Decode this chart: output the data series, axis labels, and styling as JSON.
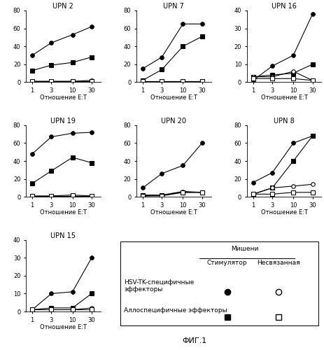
{
  "x": [
    1,
    3,
    10,
    30
  ],
  "subplots": [
    {
      "title": "UPN 2",
      "ylim": [
        0,
        80
      ],
      "yticks": [
        0,
        20,
        40,
        60,
        80
      ],
      "series": [
        {
          "y": [
            30,
            44,
            53,
            62
          ],
          "marker": "o",
          "filled": true
        },
        {
          "y": [
            13,
            19,
            22,
            28
          ],
          "marker": "s",
          "filled": true
        },
        {
          "y": [
            1,
            1,
            1,
            2
          ],
          "marker": "o",
          "filled": false
        },
        {
          "y": [
            1,
            1,
            1,
            1
          ],
          "marker": "s",
          "filled": false
        }
      ]
    },
    {
      "title": "UPN 7",
      "ylim": [
        0,
        80
      ],
      "yticks": [
        0,
        20,
        40,
        60,
        80
      ],
      "series": [
        {
          "y": [
            15,
            28,
            65,
            65
          ],
          "marker": "o",
          "filled": true
        },
        {
          "y": [
            2,
            14,
            40,
            51
          ],
          "marker": "s",
          "filled": true
        },
        {
          "y": [
            1,
            1,
            1,
            1
          ],
          "marker": "o",
          "filled": false
        },
        {
          "y": [
            1,
            1,
            1,
            1
          ],
          "marker": "s",
          "filled": false
        }
      ]
    },
    {
      "title": "UPN 16",
      "ylim": [
        0,
        40
      ],
      "yticks": [
        0,
        10,
        20,
        30,
        40
      ],
      "series": [
        {
          "y": [
            1,
            9,
            15,
            38
          ],
          "marker": "o",
          "filled": true
        },
        {
          "y": [
            3,
            4,
            5,
            10
          ],
          "marker": "s",
          "filled": true
        },
        {
          "y": [
            3,
            3,
            6,
            1
          ],
          "marker": "o",
          "filled": false
        },
        {
          "y": [
            2,
            2,
            2,
            1
          ],
          "marker": "s",
          "filled": false
        }
      ]
    },
    {
      "title": "UPN 19",
      "ylim": [
        0,
        80
      ],
      "yticks": [
        0,
        20,
        40,
        60,
        80
      ],
      "series": [
        {
          "y": [
            48,
            67,
            71,
            72
          ],
          "marker": "o",
          "filled": true
        },
        {
          "y": [
            15,
            29,
            44,
            38
          ],
          "marker": "s",
          "filled": true
        },
        {
          "y": [
            1,
            1,
            1,
            1
          ],
          "marker": "o",
          "filled": false
        },
        {
          "y": [
            1,
            1,
            2,
            1
          ],
          "marker": "s",
          "filled": false
        }
      ]
    },
    {
      "title": "UPN 20",
      "ylim": [
        0,
        80
      ],
      "yticks": [
        0,
        20,
        40,
        60,
        80
      ],
      "series": [
        {
          "y": [
            10,
            26,
            35,
            60
          ],
          "marker": "o",
          "filled": true
        },
        {
          "y": [
            2,
            2,
            5,
            5
          ],
          "marker": "s",
          "filled": true
        },
        {
          "y": [
            1,
            2,
            6,
            5
          ],
          "marker": "o",
          "filled": false
        },
        {
          "y": [
            1,
            1,
            5,
            5
          ],
          "marker": "s",
          "filled": false
        }
      ]
    },
    {
      "title": "UPN 8",
      "ylim": [
        0,
        80
      ],
      "yticks": [
        0,
        20,
        40,
        60,
        80
      ],
      "series": [
        {
          "y": [
            16,
            27,
            60,
            68
          ],
          "marker": "o",
          "filled": true
        },
        {
          "y": [
            3,
            10,
            40,
            68
          ],
          "marker": "s",
          "filled": true
        },
        {
          "y": [
            3,
            10,
            12,
            14
          ],
          "marker": "o",
          "filled": false
        },
        {
          "y": [
            3,
            3,
            5,
            5
          ],
          "marker": "s",
          "filled": false
        }
      ]
    },
    {
      "title": "UPN 15",
      "ylim": [
        0,
        40
      ],
      "yticks": [
        0,
        10,
        20,
        30,
        40
      ],
      "series": [
        {
          "y": [
            1,
            10,
            11,
            30
          ],
          "marker": "o",
          "filled": true
        },
        {
          "y": [
            1,
            2,
            2,
            10
          ],
          "marker": "s",
          "filled": true
        },
        {
          "y": [
            1,
            1,
            1,
            2
          ],
          "marker": "o",
          "filled": false
        },
        {
          "y": [
            1,
            1,
            1,
            1
          ],
          "marker": "s",
          "filled": false
        }
      ]
    }
  ],
  "xlabel": "Отношение E:T",
  "xtick_vals": [
    1,
    3,
    10,
    30
  ],
  "xtick_labels": [
    "1",
    "3",
    "10",
    "30"
  ],
  "xlim": [
    0.7,
    50
  ],
  "fig_title": "ФИГ.1",
  "legend_title": "Мишени",
  "legend_col1": "Стимулятор",
  "legend_col2": "Несвязанная",
  "legend_row1_label": "HSV-TK-специфичные\nэффекторы",
  "legend_row2_label": "Аллоспецифичные эффекторы"
}
